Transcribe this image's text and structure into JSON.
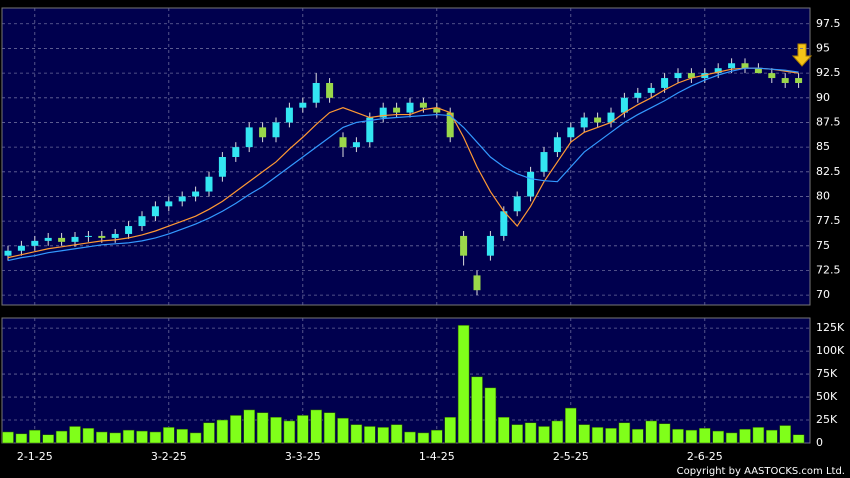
{
  "chart_data": [
    {
      "type": "candlestick",
      "open": [
        74.0,
        74.5,
        75.0,
        75.5,
        75.8,
        75.4,
        75.9,
        76.0,
        75.8,
        76.2,
        77.0,
        78.0,
        79.0,
        79.5,
        80.0,
        80.5,
        82.0,
        84.0,
        85.0,
        87.0,
        86.0,
        87.5,
        89.0,
        89.5,
        91.5,
        86.0,
        85.0,
        85.5,
        88.0,
        89.0,
        88.5,
        89.5,
        89.0,
        88.5,
        76.0,
        72.0,
        74.0,
        76.0,
        78.5,
        80.0,
        82.5,
        84.5,
        86.0,
        87.0,
        88.0,
        87.5,
        88.5,
        90.0,
        90.5,
        91.0,
        92.0,
        92.5,
        92.0,
        92.5,
        93.0,
        93.5,
        93.0,
        92.5,
        92.0,
        92.0
      ],
      "high": [
        75.0,
        75.5,
        76.0,
        76.3,
        76.3,
        76.4,
        76.5,
        76.5,
        76.7,
        77.5,
        78.5,
        79.5,
        80.0,
        80.5,
        81.0,
        82.5,
        84.5,
        85.5,
        87.5,
        87.5,
        88.0,
        89.5,
        90.0,
        92.5,
        92.0,
        86.5,
        86.0,
        88.5,
        89.5,
        89.5,
        90.0,
        90.0,
        89.5,
        89.0,
        76.5,
        72.5,
        76.5,
        79.0,
        80.5,
        83.0,
        85.0,
        86.5,
        87.5,
        88.5,
        88.5,
        89.0,
        90.5,
        91.0,
        91.5,
        92.5,
        93.0,
        93.0,
        93.0,
        93.5,
        94.0,
        94.0,
        93.5,
        93.0,
        92.5,
        92.5
      ],
      "low": [
        73.5,
        74.0,
        74.5,
        75.0,
        75.0,
        74.9,
        75.4,
        75.3,
        75.3,
        75.7,
        76.5,
        77.5,
        78.5,
        79.0,
        79.5,
        80.0,
        81.5,
        83.5,
        84.5,
        85.5,
        85.5,
        87.0,
        88.5,
        89.0,
        89.5,
        84.0,
        84.5,
        85.0,
        87.5,
        88.0,
        88.0,
        88.5,
        88.0,
        85.5,
        73.0,
        70.0,
        73.5,
        75.5,
        78.0,
        79.5,
        82.0,
        84.0,
        85.5,
        86.5,
        87.0,
        87.0,
        88.0,
        89.5,
        90.0,
        90.5,
        91.5,
        91.5,
        91.5,
        92.0,
        92.5,
        92.5,
        92.5,
        91.5,
        91.0,
        91.0
      ],
      "close": [
        74.5,
        75.0,
        75.5,
        75.8,
        75.4,
        75.9,
        76.0,
        75.8,
        76.2,
        77.0,
        78.0,
        79.0,
        79.5,
        80.0,
        80.5,
        82.0,
        84.0,
        85.0,
        87.0,
        86.0,
        87.5,
        89.0,
        89.5,
        91.5,
        90.0,
        85.0,
        85.5,
        88.0,
        89.0,
        88.5,
        89.5,
        89.0,
        88.5,
        86.0,
        74.0,
        70.5,
        76.0,
        78.5,
        80.0,
        82.5,
        84.5,
        86.0,
        87.0,
        88.0,
        87.5,
        88.5,
        90.0,
        90.5,
        91.0,
        92.0,
        92.5,
        92.0,
        92.5,
        93.0,
        93.5,
        93.0,
        92.5,
        92.0,
        91.5,
        91.5
      ],
      "up_color": "#33e6f2",
      "down_color": "#9ad84a",
      "series": [
        {
          "color": "#ff9933",
          "values": [
            73.8,
            74.1,
            74.4,
            74.7,
            74.9,
            75.1,
            75.3,
            75.5,
            75.6,
            75.8,
            76.1,
            76.5,
            77.0,
            77.5,
            78.0,
            78.7,
            79.5,
            80.5,
            81.5,
            82.5,
            83.5,
            84.8,
            86.0,
            87.3,
            88.5,
            89.0,
            88.5,
            88.0,
            88.2,
            88.3,
            88.3,
            88.8,
            89.0,
            88.5,
            86.0,
            83.0,
            80.5,
            78.5,
            77.0,
            79.0,
            81.5,
            83.5,
            85.5,
            86.5,
            87.0,
            87.5,
            88.5,
            89.3,
            90.0,
            90.8,
            91.5,
            92.0,
            92.3,
            92.6,
            92.9,
            93.0,
            93.0,
            92.9,
            92.7,
            92.5
          ]
        },
        {
          "color": "#3399ff",
          "values": [
            73.5,
            73.8,
            74.0,
            74.3,
            74.5,
            74.7,
            74.9,
            75.1,
            75.2,
            75.3,
            75.5,
            75.8,
            76.2,
            76.7,
            77.2,
            77.8,
            78.5,
            79.3,
            80.2,
            81.0,
            82.0,
            83.0,
            84.0,
            85.0,
            86.0,
            87.0,
            87.5,
            87.7,
            87.9,
            88.0,
            88.1,
            88.2,
            88.3,
            88.2,
            87.0,
            85.5,
            84.0,
            83.0,
            82.3,
            81.8,
            81.6,
            81.5,
            83.0,
            84.5,
            85.5,
            86.5,
            87.5,
            88.3,
            89.0,
            89.7,
            90.5,
            91.2,
            91.8,
            92.3,
            92.7,
            93.0,
            93.0,
            92.9,
            92.8,
            92.6
          ]
        }
      ],
      "ylim": [
        69,
        99.1
      ],
      "yticks": [
        70,
        72.5,
        75,
        77.5,
        80,
        82.5,
        85,
        87.5,
        90,
        92.5,
        95,
        97.5
      ],
      "grid": true
    },
    {
      "type": "bar",
      "categories": [
        null,
        null,
        "2-1-25",
        null,
        null,
        null,
        null,
        null,
        null,
        null,
        null,
        null,
        "3-2-25",
        null,
        null,
        null,
        null,
        null,
        null,
        null,
        null,
        null,
        "3-3-25",
        null,
        null,
        null,
        null,
        null,
        null,
        null,
        null,
        null,
        "1-4-25",
        null,
        null,
        null,
        null,
        null,
        null,
        null,
        null,
        null,
        "2-5-25",
        null,
        null,
        null,
        null,
        null,
        null,
        null,
        null,
        null,
        "2-6-25",
        null,
        null,
        null,
        null,
        null,
        null,
        null
      ],
      "values": [
        12000,
        10000,
        14000,
        9000,
        13000,
        18000,
        16000,
        12000,
        11000,
        14000,
        13000,
        12000,
        17000,
        15000,
        11000,
        22000,
        25000,
        30000,
        36000,
        33000,
        28000,
        24000,
        30000,
        36000,
        33000,
        27000,
        20000,
        18000,
        17000,
        20000,
        12000,
        11000,
        14000,
        28000,
        128000,
        72000,
        60000,
        28000,
        20000,
        22000,
        18000,
        24000,
        38000,
        20000,
        17000,
        16000,
        22000,
        15000,
        24000,
        21000,
        15000,
        14000,
        16000,
        13000,
        11000,
        15000,
        17000,
        14000,
        19000,
        9000
      ],
      "color": "#80ff1a",
      "ylim": [
        0,
        136000
      ],
      "yticks": [
        0,
        {
          "value": 25000,
          "label": "25K"
        },
        {
          "value": 50000,
          "label": "50K"
        },
        {
          "value": 75000,
          "label": "75K"
        },
        {
          "value": 100000,
          "label": "100K"
        },
        {
          "value": 125000,
          "label": "125K"
        }
      ],
      "grid": true
    }
  ],
  "copyright": "Copyright by AASTOCKS.com Ltd."
}
